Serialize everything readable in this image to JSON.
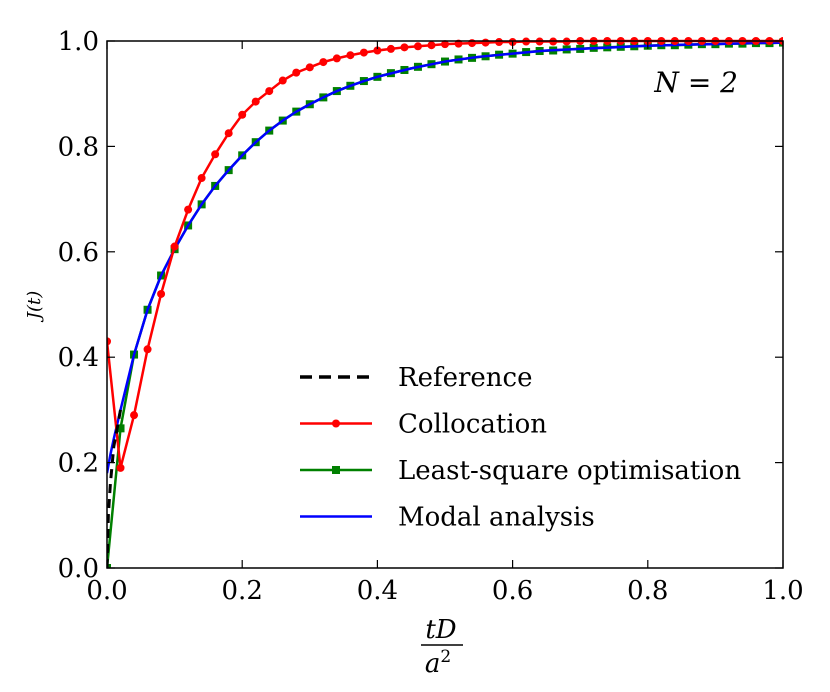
{
  "chart_data": {
    "type": "line",
    "title": "",
    "xlabel": {
      "numerator": "tD",
      "denominator": "a",
      "exponent": "2"
    },
    "ylabel": "J(t)",
    "xlim": [
      0.0,
      1.0
    ],
    "ylim": [
      0.0,
      1.0
    ],
    "xticks": [
      "0.0",
      "0.2",
      "0.4",
      "0.6",
      "0.8",
      "1.0"
    ],
    "yticks": [
      "0.0",
      "0.2",
      "0.4",
      "0.6",
      "0.8",
      "1.0"
    ],
    "grid": false,
    "legend_location": "lower-right",
    "annotation": "N = 2",
    "series": [
      {
        "name": "Reference",
        "color": "#000000",
        "style": "dashed",
        "marker": "none",
        "x": [
          0.0,
          0.002,
          0.005,
          0.01,
          0.02
        ],
        "y": [
          0.0,
          0.1,
          0.16,
          0.23,
          0.3
        ]
      },
      {
        "name": "Collocation",
        "color": "#ff0000",
        "style": "solid",
        "marker": "circle",
        "x": [
          0.0,
          0.02,
          0.04,
          0.06,
          0.08,
          0.1,
          0.12,
          0.14,
          0.16,
          0.18,
          0.2,
          0.22,
          0.24,
          0.26,
          0.28,
          0.3,
          0.32,
          0.34,
          0.36,
          0.38,
          0.4,
          0.42,
          0.44,
          0.46,
          0.48,
          0.5,
          0.52,
          0.54,
          0.56,
          0.58,
          0.6,
          0.62,
          0.64,
          0.66,
          0.68,
          0.7,
          0.72,
          0.74,
          0.76,
          0.78,
          0.8,
          0.82,
          0.84,
          0.86,
          0.88,
          0.9,
          0.92,
          0.94,
          0.96,
          0.98,
          1.0
        ],
        "y": [
          0.43,
          0.19,
          0.29,
          0.415,
          0.52,
          0.61,
          0.68,
          0.74,
          0.785,
          0.825,
          0.86,
          0.885,
          0.905,
          0.925,
          0.94,
          0.95,
          0.96,
          0.967,
          0.973,
          0.978,
          0.982,
          0.985,
          0.988,
          0.99,
          0.992,
          0.994,
          0.995,
          0.996,
          0.997,
          0.998,
          0.998,
          0.999,
          0.999,
          0.999,
          0.999,
          1.0,
          1.0,
          1.0,
          1.0,
          1.0,
          1.0,
          1.0,
          1.0,
          1.0,
          1.0,
          1.0,
          1.0,
          1.0,
          1.0,
          1.0,
          1.0
        ]
      },
      {
        "name": "Least-square optimisation",
        "color": "#008000",
        "style": "solid",
        "marker": "square",
        "x": [
          0.0,
          0.02,
          0.04,
          0.06,
          0.08,
          0.1,
          0.12,
          0.14,
          0.16,
          0.18,
          0.2,
          0.22,
          0.24,
          0.26,
          0.28,
          0.3,
          0.32,
          0.34,
          0.36,
          0.38,
          0.4,
          0.42,
          0.44,
          0.46,
          0.48,
          0.5,
          0.52,
          0.54,
          0.56,
          0.58,
          0.6,
          0.62,
          0.64,
          0.66,
          0.68,
          0.7,
          0.72,
          0.74,
          0.76,
          0.78,
          0.8,
          0.82,
          0.84,
          0.86,
          0.88,
          0.9,
          0.92,
          0.94,
          0.96,
          0.98,
          1.0
        ],
        "y": [
          0.0,
          0.265,
          0.405,
          0.49,
          0.555,
          0.605,
          0.65,
          0.69,
          0.725,
          0.755,
          0.783,
          0.808,
          0.83,
          0.849,
          0.866,
          0.88,
          0.893,
          0.905,
          0.915,
          0.924,
          0.932,
          0.939,
          0.945,
          0.951,
          0.956,
          0.961,
          0.965,
          0.968,
          0.971,
          0.974,
          0.976,
          0.979,
          0.981,
          0.982,
          0.984,
          0.985,
          0.987,
          0.988,
          0.989,
          0.99,
          0.991,
          0.992,
          0.992,
          0.993,
          0.994,
          0.994,
          0.995,
          0.995,
          0.996,
          0.996,
          0.997
        ]
      },
      {
        "name": "Modal analysis",
        "color": "#0000ff",
        "style": "solid",
        "marker": "none",
        "x": [
          0.0,
          0.005,
          0.01,
          0.02,
          0.04,
          0.06,
          0.08,
          0.1,
          0.12,
          0.14,
          0.16,
          0.18,
          0.2,
          0.22,
          0.24,
          0.26,
          0.28,
          0.3,
          0.32,
          0.34,
          0.36,
          0.38,
          0.4,
          0.45,
          0.5,
          0.55,
          0.6,
          0.65,
          0.7,
          0.75,
          0.8,
          0.85,
          0.9,
          0.95,
          1.0
        ],
        "y": [
          0.18,
          0.215,
          0.245,
          0.3,
          0.405,
          0.49,
          0.555,
          0.605,
          0.65,
          0.69,
          0.725,
          0.755,
          0.783,
          0.808,
          0.83,
          0.849,
          0.866,
          0.88,
          0.893,
          0.905,
          0.915,
          0.924,
          0.932,
          0.948,
          0.961,
          0.97,
          0.976,
          0.982,
          0.985,
          0.988,
          0.991,
          0.993,
          0.994,
          0.996,
          0.997
        ]
      }
    ]
  }
}
